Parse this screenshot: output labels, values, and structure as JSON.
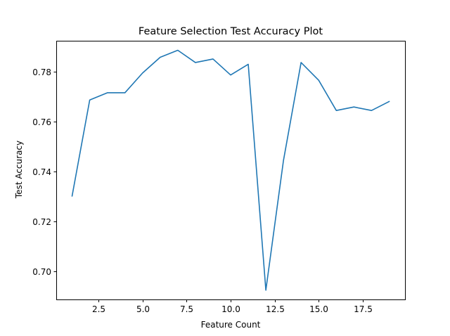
{
  "chart_data": {
    "type": "line",
    "title": "Feature Selection Test Accuracy Plot",
    "xlabel": "Feature Count",
    "ylabel": "Test Accuracy",
    "xlim": [
      0.1,
      19.9
    ],
    "ylim": [
      0.6888,
      0.7923
    ],
    "xticks": [
      2.5,
      5.0,
      7.5,
      10.0,
      12.5,
      15.0,
      17.5
    ],
    "xtick_labels": [
      "2.5",
      "5.0",
      "7.5",
      "10.0",
      "12.5",
      "15.0",
      "17.5"
    ],
    "yticks": [
      0.7,
      0.72,
      0.74,
      0.76,
      0.78
    ],
    "ytick_labels": [
      "0.70",
      "0.72",
      "0.74",
      "0.76",
      "0.78"
    ],
    "grid": false,
    "series": [
      {
        "color": "#1f77b4",
        "x": [
          1,
          2,
          3,
          4,
          5,
          6,
          7,
          8,
          9,
          10,
          11,
          12,
          13,
          14,
          15,
          16,
          17,
          18,
          19
        ],
        "y": [
          0.7302,
          0.7686,
          0.7715,
          0.7715,
          0.7794,
          0.7857,
          0.7885,
          0.7836,
          0.785,
          0.7786,
          0.7829,
          0.6925,
          0.7444,
          0.7836,
          0.7765,
          0.7644,
          0.7658,
          0.7644,
          0.768
        ]
      }
    ]
  }
}
